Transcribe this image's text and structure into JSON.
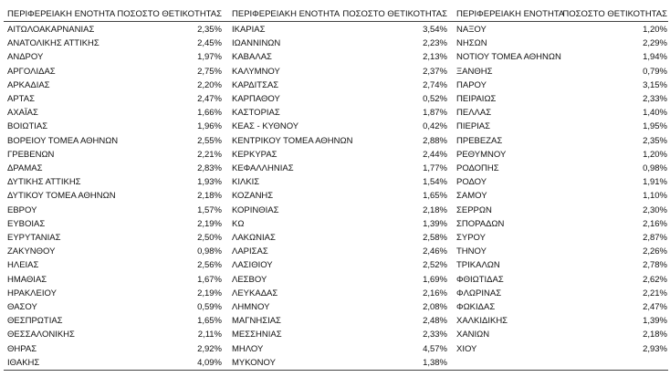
{
  "table": {
    "headers": [
      "ΠΕΡΙΦΕΡΕΙΑΚΗ ΕΝΟΤΗΤΑ",
      "ΠΟΣΟΣΤΟ ΘΕΤΙΚΟΤΗΤΑΣ",
      "ΠΕΡΙΦΕΡΕΙΑΚΗ ΕΝΟΤΗΤΑ",
      "ΠΟΣΟΣΤΟ ΘΕΤΙΚΟΤΗΤΑΣ",
      "ΠΕΡΙΦΕΡΕΙΑΚΗ ΕΝΟΤΗΤΑ",
      "ΠΟΣΟΣΤΟ ΘΕΤΙΚΟΤΗΤΑΣ"
    ],
    "columns": [
      {
        "rows": [
          [
            "ΑΙΤΩΛΟΑΚΑΡΝΑΝΙΑΣ",
            "2,35%"
          ],
          [
            "ΑΝΑΤΟΛΙΚΗΣ ΑΤΤΙΚΗΣ",
            "2,45%"
          ],
          [
            "ΑΝΔΡΟΥ",
            "1,97%"
          ],
          [
            "ΑΡΓΟΛΙΔΑΣ",
            "2,75%"
          ],
          [
            "ΑΡΚΑΔΙΑΣ",
            "2,20%"
          ],
          [
            "ΑΡΤΑΣ",
            "2,47%"
          ],
          [
            "ΑΧΑΪΑΣ",
            "1,66%"
          ],
          [
            "ΒΟΙΩΤΙΑΣ",
            "1,96%"
          ],
          [
            "ΒΟΡΕΙΟΥ ΤΟΜΕΑ ΑΘΗΝΩΝ",
            "2,55%"
          ],
          [
            "ΓΡΕΒΕΝΩΝ",
            "2,21%"
          ],
          [
            "ΔΡΑΜΑΣ",
            "2,83%"
          ],
          [
            "ΔΥΤΙΚΗΣ ΑΤΤΙΚΗΣ",
            "1,93%"
          ],
          [
            "ΔΥΤΙΚΟΥ ΤΟΜΕΑ ΑΘΗΝΩΝ",
            "2,18%"
          ],
          [
            "ΕΒΡΟΥ",
            "1,57%"
          ],
          [
            "ΕΥΒΟΙΑΣ",
            "2,19%"
          ],
          [
            "ΕΥΡΥΤΑΝΙΑΣ",
            "2,50%"
          ],
          [
            "ΖΑΚΥΝΘΟΥ",
            "0,98%"
          ],
          [
            "ΗΛΕΙΑΣ",
            "2,56%"
          ],
          [
            "ΗΜΑΘΙΑΣ",
            "1,67%"
          ],
          [
            "ΗΡΑΚΛΕΙΟΥ",
            "2,19%"
          ],
          [
            "ΘΑΣΟΥ",
            "0,59%"
          ],
          [
            "ΘΕΣΠΡΩΤΙΑΣ",
            "1,65%"
          ],
          [
            "ΘΕΣΣΑΛΟΝΙΚΗΣ",
            "2,11%"
          ],
          [
            "ΘΗΡΑΣ",
            "2,92%"
          ],
          [
            "ΙΘΑΚΗΣ",
            "4,09%"
          ]
        ]
      },
      {
        "rows": [
          [
            "ΙΚΑΡΙΑΣ",
            "3,54%"
          ],
          [
            "ΙΩΑΝΝΙΝΩΝ",
            "2,23%"
          ],
          [
            "ΚΑΒΑΛΑΣ",
            "2,13%"
          ],
          [
            "ΚΑΛΥΜΝΟΥ",
            "2,37%"
          ],
          [
            "ΚΑΡΔΙΤΣΑΣ",
            "2,74%"
          ],
          [
            "ΚΑΡΠΑΘΟΥ",
            "0,52%"
          ],
          [
            "ΚΑΣΤΟΡΙΑΣ",
            "1,87%"
          ],
          [
            "ΚΕΑΣ - ΚΥΘΝΟΥ",
            "0,42%"
          ],
          [
            "ΚΕΝΤΡΙΚΟΥ ΤΟΜΕΑ ΑΘΗΝΩΝ",
            "2,88%"
          ],
          [
            "ΚΕΡΚΥΡΑΣ",
            "2,44%"
          ],
          [
            "ΚΕΦΑΛΛΗΝΙΑΣ",
            "1,77%"
          ],
          [
            "ΚΙΛΚΙΣ",
            "1,54%"
          ],
          [
            "ΚΟΖΑΝΗΣ",
            "1,65%"
          ],
          [
            "ΚΟΡΙΝΘΙΑΣ",
            "2,18%"
          ],
          [
            "ΚΩ",
            "1,39%"
          ],
          [
            "ΛΑΚΩΝΙΑΣ",
            "2,58%"
          ],
          [
            "ΛΑΡΙΣΑΣ",
            "2,46%"
          ],
          [
            "ΛΑΣΙΘΙΟΥ",
            "2,52%"
          ],
          [
            "ΛΕΣΒΟΥ",
            "1,69%"
          ],
          [
            "ΛΕΥΚΑΔΑΣ",
            "2,16%"
          ],
          [
            "ΛΗΜΝΟΥ",
            "2,08%"
          ],
          [
            "ΜΑΓΝΗΣΙΑΣ",
            "2,48%"
          ],
          [
            "ΜΕΣΣΗΝΙΑΣ",
            "2,33%"
          ],
          [
            "ΜΗΛΟΥ",
            "4,57%"
          ],
          [
            "ΜΥΚΟΝΟΥ",
            "1,38%"
          ]
        ]
      },
      {
        "rows": [
          [
            "ΝΑΞΟΥ",
            "1,20%"
          ],
          [
            "ΝΗΣΩΝ",
            "2,29%"
          ],
          [
            "ΝΟΤΙΟΥ ΤΟΜΕΑ ΑΘΗΝΩΝ",
            "1,94%"
          ],
          [
            "ΞΑΝΘΗΣ",
            "0,79%"
          ],
          [
            "ΠΑΡΟΥ",
            "3,15%"
          ],
          [
            "ΠΕΙΡΑΙΩΣ",
            "2,33%"
          ],
          [
            "ΠΕΛΛΑΣ",
            "1,40%"
          ],
          [
            "ΠΙΕΡΙΑΣ",
            "1,95%"
          ],
          [
            "ΠΡΕΒΕΖΑΣ",
            "2,35%"
          ],
          [
            "ΡΕΘΥΜΝΟΥ",
            "1,20%"
          ],
          [
            "ΡΟΔΟΠΗΣ",
            "0,98%"
          ],
          [
            "ΡΟΔΟΥ",
            "1,91%"
          ],
          [
            "ΣΑΜΟΥ",
            "1,10%"
          ],
          [
            "ΣΕΡΡΩΝ",
            "2,30%"
          ],
          [
            "ΣΠΟΡΑΔΩΝ",
            "2,16%"
          ],
          [
            "ΣΥΡΟΥ",
            "2,87%"
          ],
          [
            "ΤΗΝΟΥ",
            "2,26%"
          ],
          [
            "ΤΡΙΚΑΛΩΝ",
            "2,78%"
          ],
          [
            "ΦΘΙΩΤΙΔΑΣ",
            "2,62%"
          ],
          [
            "ΦΛΩΡΙΝΑΣ",
            "2,21%"
          ],
          [
            "ΦΩΚΙΔΑΣ",
            "2,47%"
          ],
          [
            "ΧΑΛΚΙΔΙΚΗΣ",
            "1,39%"
          ],
          [
            "ΧΑΝΙΩΝ",
            "2,18%"
          ],
          [
            "ΧΙΟΥ",
            "2,93%"
          ]
        ]
      }
    ]
  }
}
